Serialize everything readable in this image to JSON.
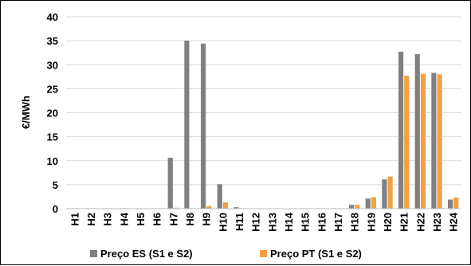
{
  "chart_data": {
    "type": "bar",
    "ylabel": "€/MWh",
    "ylim": [
      0,
      40
    ],
    "yticks": [
      0,
      5,
      10,
      15,
      20,
      25,
      30,
      35,
      40
    ],
    "grid": "horizontal",
    "legend": "bottom",
    "categories": [
      "H1",
      "H2",
      "H3",
      "H4",
      "H5",
      "H6",
      "H7",
      "H8",
      "H9",
      "H10",
      "H11",
      "H12",
      "H13",
      "H14",
      "H15",
      "H16",
      "H17",
      "H18",
      "H19",
      "H20",
      "H21",
      "H22",
      "H23",
      "H24"
    ],
    "series": [
      {
        "name": "Preço ES (S1 e S2)",
        "color": "#808080",
        "values": [
          0.1,
          0.1,
          0.1,
          0.1,
          0.1,
          0.1,
          10.6,
          35,
          34.4,
          5.1,
          0.3,
          0,
          0,
          0,
          0.1,
          0.1,
          0.1,
          0.8,
          2.1,
          6.1,
          32.7,
          32.2,
          28.3,
          1.9
        ]
      },
      {
        "name": "Preço PT (S1 e S2)",
        "color": "#f4a040",
        "values": [
          0.1,
          0.1,
          0.1,
          0.1,
          0.1,
          0.1,
          0.2,
          0.1,
          0.5,
          1.3,
          0.1,
          0,
          0,
          0,
          0.1,
          0.1,
          0.1,
          0.8,
          2.4,
          6.7,
          27.7,
          28.1,
          28,
          2.3
        ]
      }
    ]
  }
}
